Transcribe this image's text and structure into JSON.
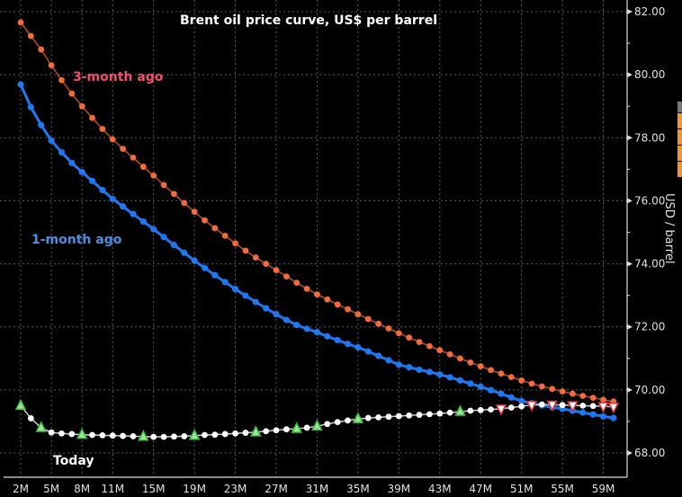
{
  "chart_data": {
    "type": "line",
    "title": "Brent oil price curve, US$ per barrel",
    "xlabel": "",
    "ylabel": "USD / barrel",
    "ylim": [
      68,
      82
    ],
    "yticks": [
      "68.00",
      "70.00",
      "72.00",
      "74.00",
      "76.00",
      "78.00",
      "80.00",
      "82.00"
    ],
    "ytick_values": [
      68,
      70,
      72,
      74,
      76,
      78,
      80,
      82
    ],
    "x_months": [
      2,
      3,
      4,
      5,
      6,
      7,
      8,
      9,
      10,
      11,
      12,
      13,
      14,
      15,
      16,
      17,
      18,
      19,
      20,
      21,
      22,
      23,
      24,
      25,
      26,
      27,
      28,
      29,
      30,
      31,
      32,
      33,
      34,
      35,
      36,
      37,
      38,
      39,
      40,
      41,
      42,
      43,
      44,
      45,
      46,
      47,
      48,
      49,
      50,
      51,
      52,
      53,
      54,
      55,
      56,
      57,
      58,
      59,
      60
    ],
    "xticks": [
      "2M",
      "5M",
      "8M",
      "11M",
      "15M",
      "19M",
      "23M",
      "27M",
      "31M",
      "35M",
      "39M",
      "43M",
      "47M",
      "51M",
      "55M",
      "59M"
    ],
    "xtick_values": [
      2,
      5,
      8,
      11,
      15,
      19,
      23,
      27,
      31,
      35,
      39,
      43,
      47,
      51,
      55,
      59
    ],
    "grid": true,
    "y_axis_position": "right",
    "series": [
      {
        "name": "3-month ago",
        "label_color": "#f0506e",
        "color": "#f26b3a",
        "line_color": "#b5502a",
        "values": [
          81.66,
          81.23,
          80.8,
          80.3,
          79.83,
          79.4,
          79.0,
          78.63,
          78.28,
          77.95,
          77.65,
          77.37,
          77.08,
          76.8,
          76.5,
          76.22,
          75.93,
          75.65,
          75.38,
          75.13,
          74.89,
          74.65,
          74.42,
          74.2,
          74.0,
          73.8,
          73.6,
          73.4,
          73.21,
          73.03,
          72.87,
          72.71,
          72.56,
          72.4,
          72.25,
          72.1,
          71.95,
          71.8,
          71.66,
          71.52,
          71.39,
          71.26,
          71.13,
          71.0,
          70.87,
          70.75,
          70.63,
          70.52,
          70.41,
          70.3,
          70.2,
          70.11,
          70.03,
          69.95,
          69.88,
          69.81,
          69.75,
          69.69,
          69.63
        ]
      },
      {
        "name": "1-month ago",
        "label_color": "#4a90e2",
        "color": "#1f78f0",
        "line_color": "#1f78f0",
        "values": [
          79.69,
          78.97,
          78.4,
          77.91,
          77.54,
          77.2,
          76.91,
          76.63,
          76.34,
          76.06,
          75.82,
          75.58,
          75.34,
          75.1,
          74.85,
          74.6,
          74.35,
          74.1,
          73.87,
          73.64,
          73.42,
          73.2,
          72.99,
          72.79,
          72.59,
          72.4,
          72.22,
          72.06,
          71.94,
          71.83,
          71.7,
          71.58,
          71.46,
          71.35,
          71.22,
          71.08,
          70.94,
          70.8,
          70.72,
          70.64,
          70.57,
          70.49,
          70.4,
          70.3,
          70.2,
          70.1,
          69.99,
          69.88,
          69.76,
          69.65,
          69.58,
          69.51,
          69.45,
          69.4,
          69.34,
          69.28,
          69.22,
          69.16,
          69.11
        ]
      },
      {
        "name": "Today",
        "label_color": "#ffffff",
        "color": "#ffffff",
        "line_color": "#cfcfcf",
        "values": [
          69.5,
          69.1,
          68.8,
          68.65,
          68.62,
          68.6,
          68.58,
          68.57,
          68.56,
          68.55,
          68.54,
          68.53,
          68.52,
          68.51,
          68.51,
          68.52,
          68.53,
          68.55,
          68.57,
          68.58,
          68.6,
          68.62,
          68.64,
          68.66,
          68.69,
          68.72,
          68.75,
          68.77,
          68.8,
          68.85,
          68.92,
          68.98,
          69.03,
          69.08,
          69.11,
          69.13,
          69.15,
          69.17,
          69.19,
          69.21,
          69.23,
          69.25,
          69.28,
          69.31,
          69.34,
          69.36,
          69.38,
          69.4,
          69.44,
          69.48,
          69.52,
          69.54,
          69.53,
          69.52,
          69.51,
          69.5,
          69.49,
          69.48,
          69.46
        ],
        "up_markers_at_months": [
          2,
          4,
          8,
          14,
          19,
          25,
          29,
          31,
          35,
          45
        ],
        "down_markers_at_months": [
          49,
          52,
          54,
          56,
          59,
          60
        ],
        "up_marker_color": "#3fbf3f",
        "down_marker_color": "#e0303a"
      }
    ],
    "annotations": [
      {
        "text": "3-month ago",
        "series": "3-month ago"
      },
      {
        "text": "1-month ago",
        "series": "1-month ago"
      },
      {
        "text": "Today",
        "series": "Today"
      }
    ]
  }
}
